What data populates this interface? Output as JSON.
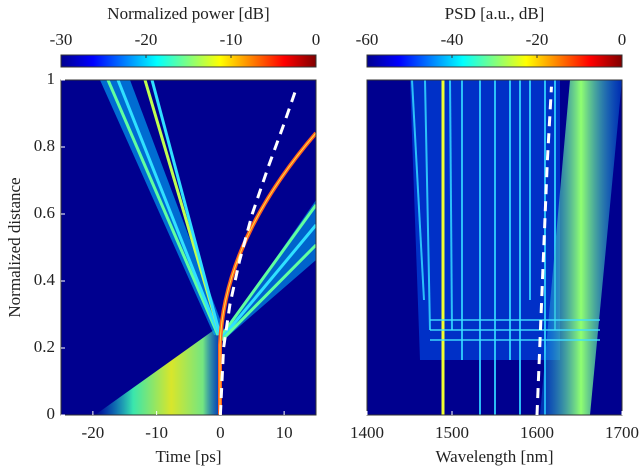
{
  "chart_data": [
    {
      "type": "heatmap",
      "title": "Normalized power [dB]",
      "xlabel": "Time [ps]",
      "ylabel": "Normalized distance",
      "xlim": [
        -25,
        15
      ],
      "xticks": [
        -20,
        -10,
        0,
        10
      ],
      "ylim": [
        0,
        1
      ],
      "yticks": [
        0,
        0.2,
        0.4,
        0.6,
        0.8,
        1
      ],
      "clim": [
        -30,
        0
      ],
      "cticks": [
        -30,
        -20,
        -10,
        0
      ],
      "line": {
        "x": [
          0,
          0.5,
          1.5,
          3,
          5,
          7.5,
          10,
          12
        ],
        "y": [
          0,
          0.2,
          0.33,
          0.46,
          0.6,
          0.74,
          0.87,
          0.98
        ],
        "color": "#ffffff"
      }
    },
    {
      "type": "heatmap",
      "title": "PSD [a.u., dB]",
      "xlabel": "Wavelength [nm]",
      "xlim": [
        1400,
        1700
      ],
      "xticks": [
        1400,
        1500,
        1600,
        1700
      ],
      "ylim": [
        0,
        1
      ],
      "clim": [
        -60,
        0
      ],
      "cticks": [
        -60,
        -40,
        -20,
        0
      ],
      "line": {
        "x": [
          1600,
          1604,
          1608,
          1612,
          1617
        ],
        "y": [
          0,
          0.25,
          0.5,
          0.75,
          0.98
        ],
        "color": "#ffffff"
      }
    }
  ]
}
